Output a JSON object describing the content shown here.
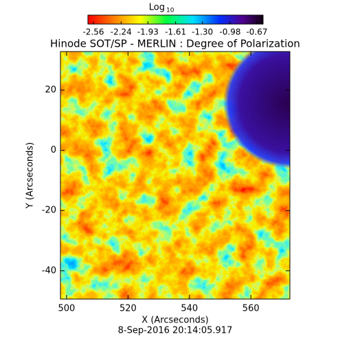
{
  "chart_data": {
    "type": "image",
    "title": "Hinode SOT/SP - MERLIN : Degree of Polarization",
    "xlabel": "X (Arcseconds)",
    "ylabel": "Y (Arcseconds)",
    "footer": "8-Sep-2016 20:14:05.917",
    "colorbar_label": "Log",
    "colorbar_label_sub": "10",
    "colorbar_lim": [
      -2.56,
      -0.67
    ],
    "colorbar_ticks": [
      -2.56,
      -2.24,
      -1.93,
      -1.61,
      {
        "value": -1.3,
        "label": "-1.30"
      },
      -0.98,
      -0.67
    ],
    "xlim": [
      498,
      572.7
    ],
    "xticks": [
      500,
      520,
      540,
      560
    ],
    "ylim": [
      -49.4,
      32.8
    ],
    "yticks": [
      -40,
      -20,
      0,
      20
    ]
  }
}
